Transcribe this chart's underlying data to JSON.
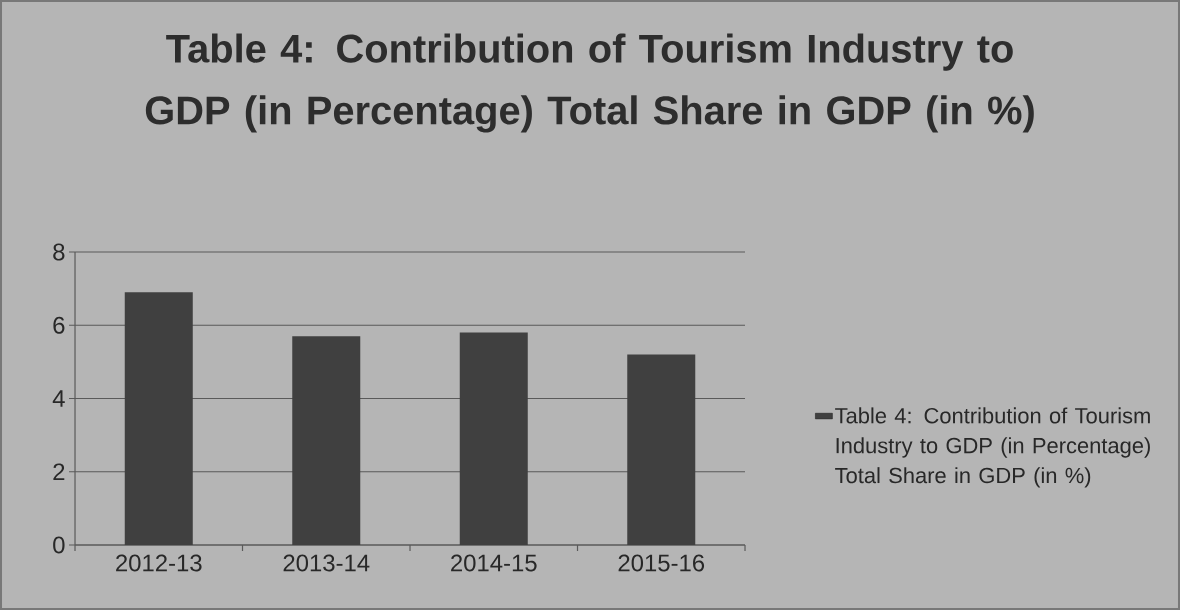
{
  "chart_data": {
    "type": "bar",
    "title": "Table 4: Contribution of Tourism Industry to GDP (in Percentage) Total Share in GDP (in %)",
    "categories": [
      "2012-13",
      "2013-14",
      "2014-15",
      "2015-16"
    ],
    "series": [
      {
        "name": "Table 4: Contribution of Tourism Industry to GDP (in Percentage) Total Share in GDP (in %)",
        "color": "#404040",
        "values": [
          6.9,
          5.7,
          5.8,
          5.2
        ]
      }
    ],
    "ylim": [
      0,
      8
    ],
    "yticks": [
      0,
      2,
      4,
      6,
      8
    ],
    "grid": "y",
    "legend": "right"
  }
}
